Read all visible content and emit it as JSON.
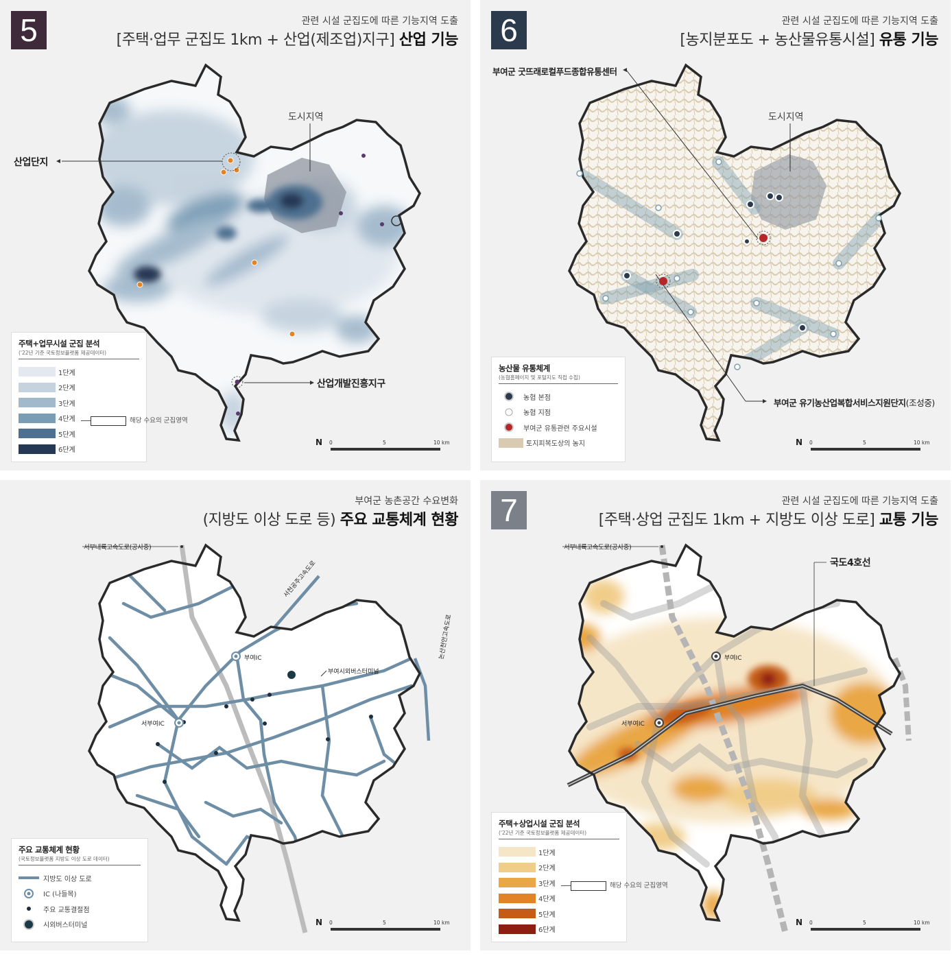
{
  "colors": {
    "blue_levels": [
      "#e3e9ef",
      "#c5d3df",
      "#a2b9cc",
      "#7a9db6",
      "#4d6f90",
      "#263954"
    ],
    "orange_levels": [
      "#f6e6c8",
      "#f1cd8a",
      "#e9a745",
      "#e08427",
      "#c45b17",
      "#8f1e12"
    ],
    "farmland": "#d9cbb1",
    "road_blue": "#6e8ea6",
    "urban_gray": "#8f96a0",
    "badge_5": "#3e2a3a",
    "badge_6": "#2b3a4c",
    "badge_7": "#7b8089"
  },
  "panels": {
    "p5": {
      "badge": "5",
      "subtitle": "관련 시설 군집도에 따른 기능지역 도출",
      "title_normal": "[주택·업무 군집도 1km + 산업(제조업)지구]",
      "title_bold": "산업 기능",
      "labels": {
        "urban": "도시지역",
        "industrial_complex": "산업단지",
        "industrial_zone": "산업개발진흥지구"
      },
      "legend": {
        "title": "주택+업무시설 군집 분석",
        "source": "('22년 기준 국토정보플랫폼 제공데이터)",
        "levels": [
          "1단계",
          "2단계",
          "3단계",
          "4단계",
          "5단계",
          "6단계"
        ],
        "hint": "해당 수요의 군집영역"
      },
      "scale": {
        "north": "N",
        "ticks": [
          "0",
          "5",
          "10"
        ],
        "unit": "km"
      }
    },
    "p6": {
      "badge": "6",
      "subtitle": "관련 시설 군집도에 따른 기능지역 도출",
      "title_normal": "[농지분포도 + 농산물유통시설]",
      "title_bold": "유통 기능",
      "labels": {
        "urban": "도시지역",
        "center": "부여군 굿뜨래로컬푸드종합유통센터",
        "complex": "부여군 유기농산업복합서비스지원단지",
        "complex_note": "(조성중)"
      },
      "legend": {
        "title": "농산물 유통체계",
        "source": "(농협홈페이지 및 포털지도 직접 수집)",
        "items": [
          "농협 본점",
          "농협 지점",
          "부여군 유통관련 주요시설",
          "토지피복도상의 농지"
        ]
      },
      "scale": {
        "north": "N",
        "ticks": [
          "0",
          "5",
          "10"
        ],
        "unit": "km"
      }
    },
    "p_transport": {
      "subtitle": "부여군 농촌공간 수요변화",
      "title_normal": "(지방도 이상 도로 등)",
      "title_bold": "주요 교통체계 현황",
      "labels": {
        "expressway_construction": "서부내륙고속도로(공사중)",
        "seocheon_gongju": "서천공주고속도로",
        "nonsan_cheonan": "논산천안고속도로",
        "buyeo_ic": "부여IC",
        "seobuyeo_ic": "서부여IC",
        "terminal": "부여시외버스터미널"
      },
      "legend": {
        "title": "주요 교통체계 현황",
        "source": "(국토정보플랫폼 지방도 이상 도로 데이터)",
        "items": [
          "지방도 이상 도로",
          "IC (나들목)",
          "주요 교통결절점",
          "시외버스터미널"
        ]
      },
      "scale": {
        "north": "N",
        "ticks": [
          "0",
          "5",
          "10"
        ],
        "unit": "km"
      }
    },
    "p7": {
      "badge": "7",
      "subtitle": "관련 시설 군집도에 따른 기능지역 도출",
      "title_normal": "[주택·상업 군집도 1km + 지방도 이상 도로]",
      "title_bold": "교통 기능",
      "labels": {
        "expressway_construction": "서부내륙고속도로(공사중)",
        "national_road": "국도4호선",
        "buyeo_ic": "부여IC",
        "seobuyeo_ic": "서부여IC"
      },
      "legend": {
        "title": "주택+상업시설 군집 분석",
        "source": "('22년 기준 국토정보플랫폼 제공데이터)",
        "levels": [
          "1단계",
          "2단계",
          "3단계",
          "4단계",
          "5단계",
          "6단계"
        ],
        "hint": "해당 수요의 군집영역"
      },
      "scale": {
        "north": "N",
        "ticks": [
          "0",
          "5",
          "10"
        ],
        "unit": "km"
      }
    }
  }
}
